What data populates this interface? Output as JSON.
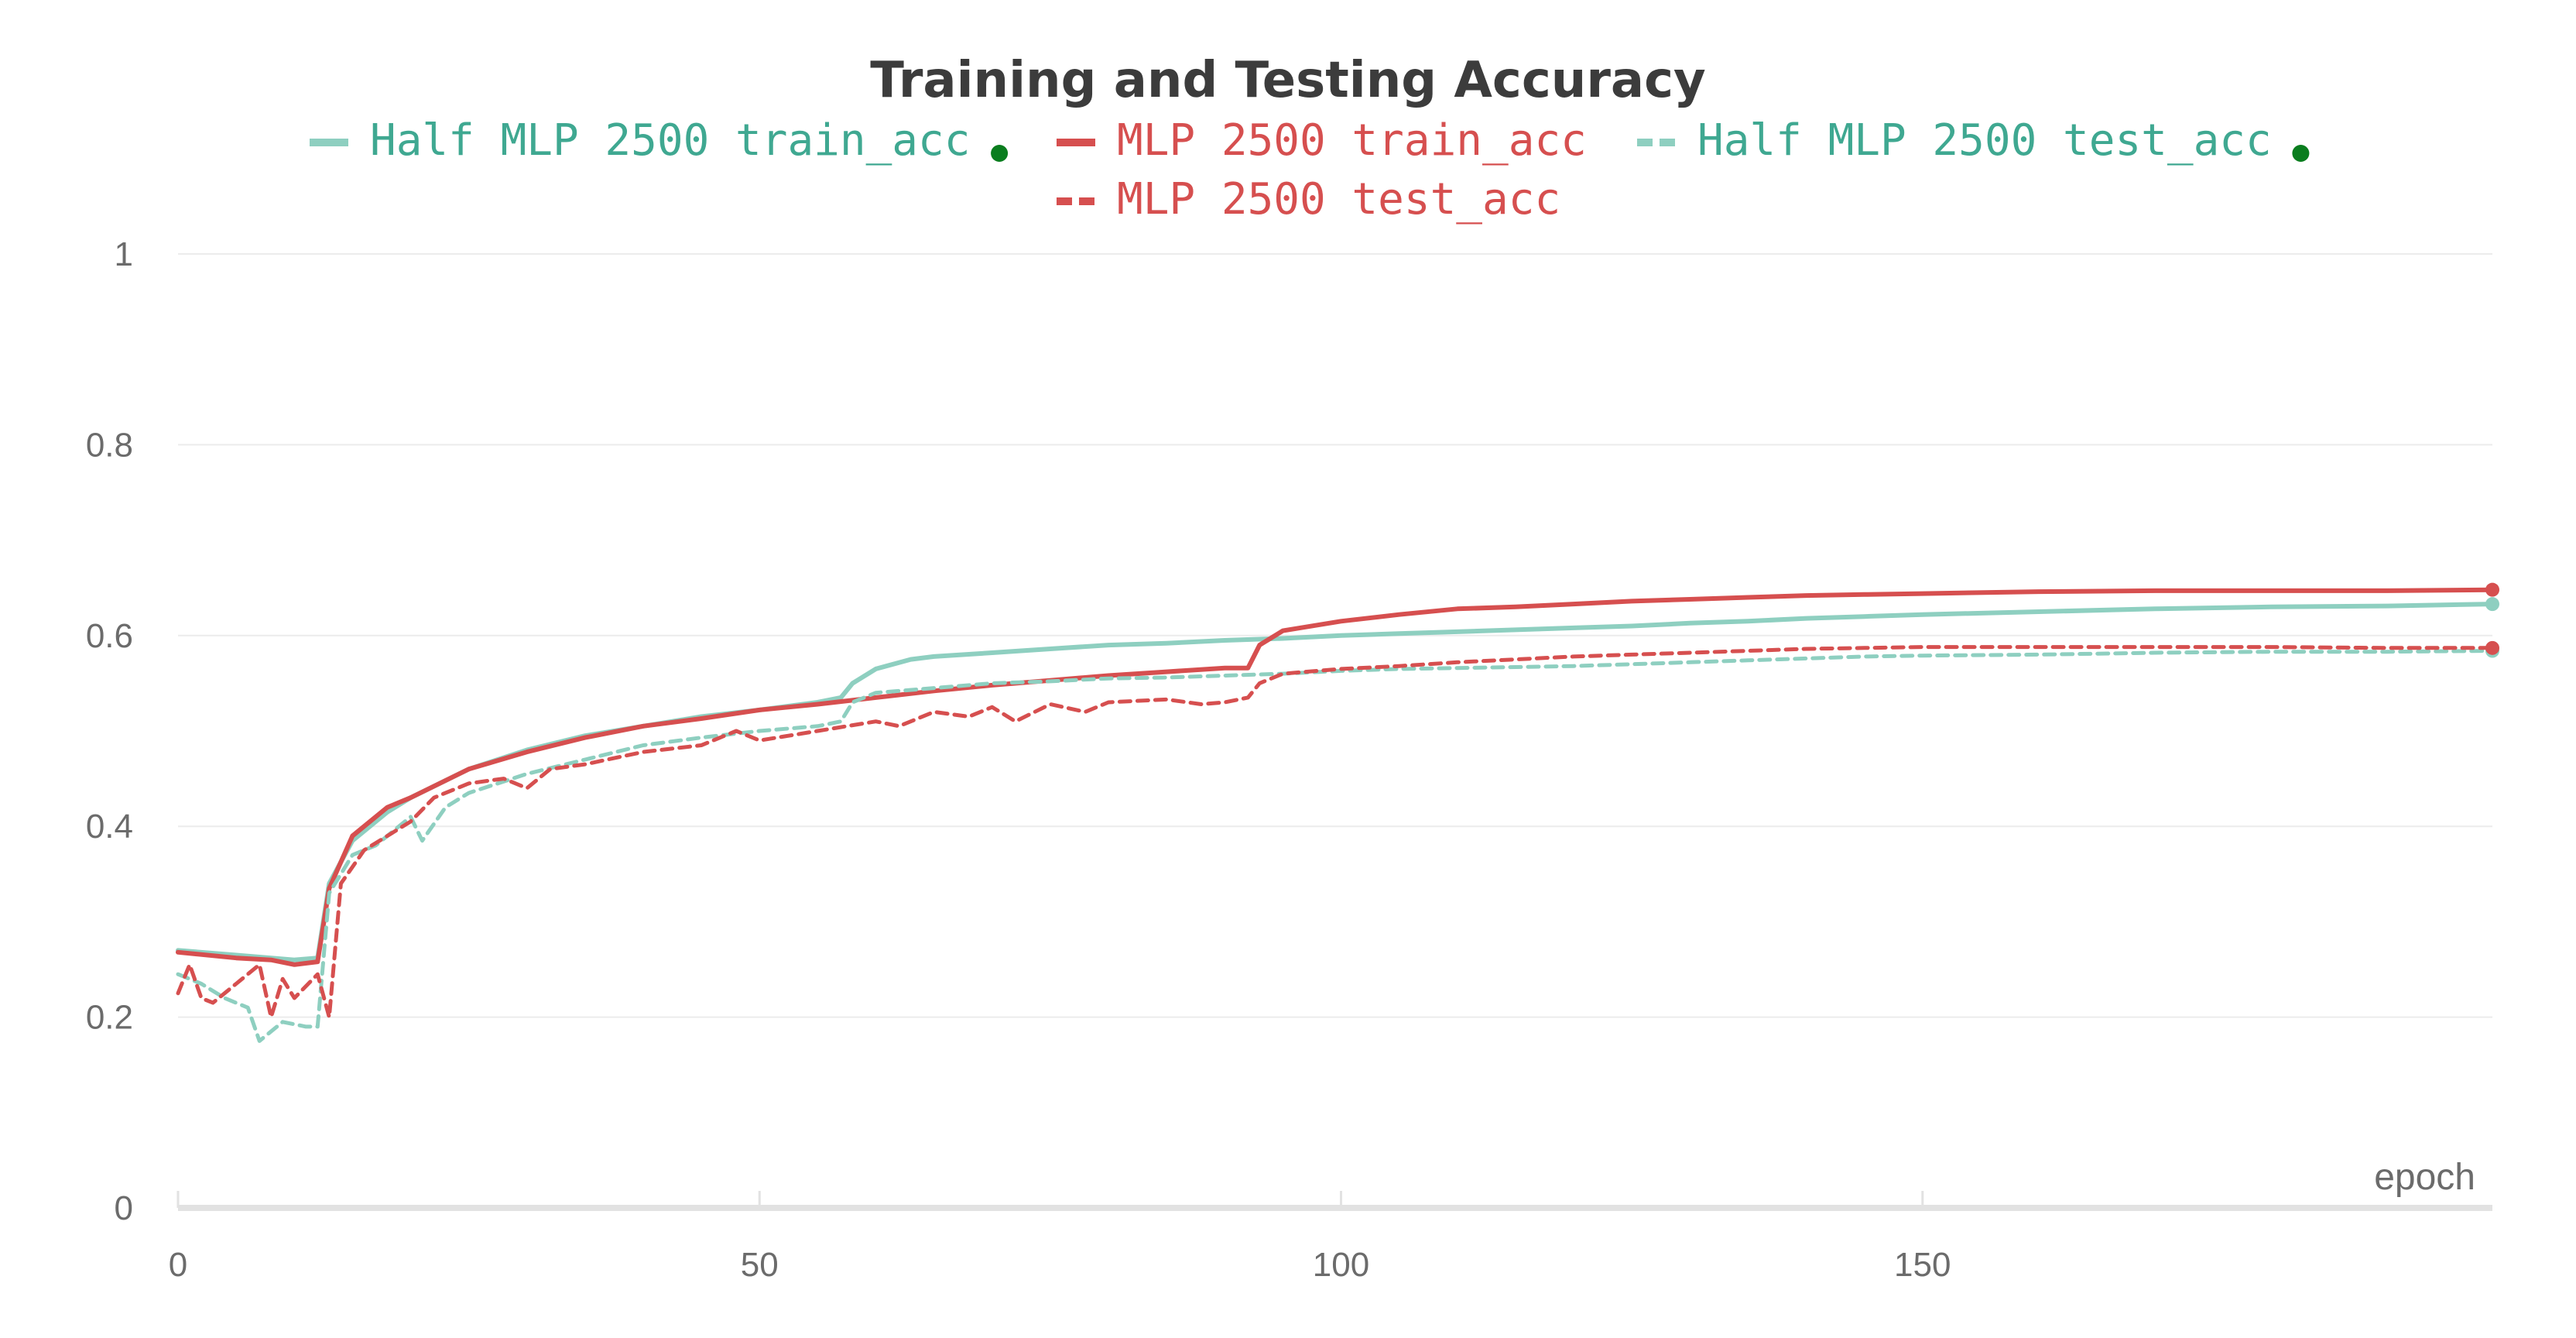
{
  "chart_data": {
    "type": "line",
    "title": "Training and Testing Accuracy",
    "xlabel": "epoch",
    "ylabel": "",
    "xlim": [
      0,
      199
    ],
    "ylim": [
      0,
      1
    ],
    "x_ticks": [
      0,
      50,
      100,
      150
    ],
    "y_ticks": [
      0,
      0.2,
      0.4,
      0.6,
      0.8,
      1
    ],
    "y_tick_labels": [
      "0",
      "0.2",
      "0.4",
      "0.6",
      "0.8",
      "1"
    ],
    "x_tick_labels": [
      "0",
      "50",
      "100",
      "150"
    ],
    "grid": true,
    "legend_position": "top-center",
    "series": [
      {
        "name": "Half MLP 2500 train_acc",
        "color": "#8ecfc0",
        "dash": "solid",
        "legend_dot": "#0a7d1e",
        "points": [
          [
            0,
            0.27
          ],
          [
            5,
            0.265
          ],
          [
            10,
            0.26
          ],
          [
            12,
            0.262
          ],
          [
            13,
            0.34
          ],
          [
            15,
            0.385
          ],
          [
            18,
            0.415
          ],
          [
            20,
            0.43
          ],
          [
            25,
            0.46
          ],
          [
            30,
            0.48
          ],
          [
            35,
            0.495
          ],
          [
            40,
            0.505
          ],
          [
            45,
            0.515
          ],
          [
            50,
            0.522
          ],
          [
            55,
            0.53
          ],
          [
            57,
            0.535
          ],
          [
            58,
            0.55
          ],
          [
            60,
            0.565
          ],
          [
            63,
            0.575
          ],
          [
            65,
            0.578
          ],
          [
            70,
            0.582
          ],
          [
            75,
            0.586
          ],
          [
            80,
            0.59
          ],
          [
            85,
            0.592
          ],
          [
            90,
            0.595
          ],
          [
            95,
            0.597
          ],
          [
            100,
            0.6
          ],
          [
            105,
            0.602
          ],
          [
            110,
            0.604
          ],
          [
            115,
            0.606
          ],
          [
            120,
            0.608
          ],
          [
            125,
            0.61
          ],
          [
            130,
            0.613
          ],
          [
            135,
            0.615
          ],
          [
            140,
            0.618
          ],
          [
            145,
            0.62
          ],
          [
            150,
            0.622
          ],
          [
            160,
            0.625
          ],
          [
            170,
            0.628
          ],
          [
            180,
            0.63
          ],
          [
            190,
            0.631
          ],
          [
            199,
            0.633
          ]
        ]
      },
      {
        "name": "MLP 2500 train_acc",
        "color": "#d64f4f",
        "dash": "solid",
        "legend_dot": "",
        "points": [
          [
            0,
            0.268
          ],
          [
            5,
            0.262
          ],
          [
            8,
            0.26
          ],
          [
            10,
            0.255
          ],
          [
            12,
            0.258
          ],
          [
            13,
            0.335
          ],
          [
            15,
            0.39
          ],
          [
            18,
            0.42
          ],
          [
            20,
            0.43
          ],
          [
            25,
            0.46
          ],
          [
            30,
            0.478
          ],
          [
            35,
            0.493
          ],
          [
            40,
            0.505
          ],
          [
            45,
            0.513
          ],
          [
            50,
            0.522
          ],
          [
            55,
            0.528
          ],
          [
            60,
            0.535
          ],
          [
            65,
            0.542
          ],
          [
            70,
            0.548
          ],
          [
            75,
            0.553
          ],
          [
            80,
            0.558
          ],
          [
            85,
            0.562
          ],
          [
            90,
            0.566
          ],
          [
            92,
            0.566
          ],
          [
            93,
            0.59
          ],
          [
            95,
            0.605
          ],
          [
            100,
            0.615
          ],
          [
            105,
            0.622
          ],
          [
            110,
            0.628
          ],
          [
            115,
            0.63
          ],
          [
            120,
            0.633
          ],
          [
            125,
            0.636
          ],
          [
            130,
            0.638
          ],
          [
            135,
            0.64
          ],
          [
            140,
            0.642
          ],
          [
            145,
            0.643
          ],
          [
            150,
            0.644
          ],
          [
            160,
            0.646
          ],
          [
            170,
            0.647
          ],
          [
            180,
            0.647
          ],
          [
            190,
            0.647
          ],
          [
            199,
            0.648
          ]
        ]
      },
      {
        "name": "Half MLP 2500 test_acc",
        "color": "#8ecfc0",
        "dash": "dashed",
        "legend_dot": "#0a7d1e",
        "points": [
          [
            0,
            0.245
          ],
          [
            2,
            0.235
          ],
          [
            4,
            0.22
          ],
          [
            6,
            0.21
          ],
          [
            7,
            0.175
          ],
          [
            9,
            0.195
          ],
          [
            11,
            0.19
          ],
          [
            12,
            0.19
          ],
          [
            13,
            0.33
          ],
          [
            15,
            0.37
          ],
          [
            17,
            0.38
          ],
          [
            20,
            0.41
          ],
          [
            21,
            0.385
          ],
          [
            23,
            0.42
          ],
          [
            25,
            0.435
          ],
          [
            30,
            0.455
          ],
          [
            35,
            0.47
          ],
          [
            40,
            0.485
          ],
          [
            45,
            0.493
          ],
          [
            50,
            0.5
          ],
          [
            55,
            0.505
          ],
          [
            57,
            0.51
          ],
          [
            58,
            0.53
          ],
          [
            60,
            0.54
          ],
          [
            65,
            0.545
          ],
          [
            70,
            0.55
          ],
          [
            75,
            0.552
          ],
          [
            80,
            0.555
          ],
          [
            85,
            0.556
          ],
          [
            90,
            0.558
          ],
          [
            95,
            0.56
          ],
          [
            100,
            0.563
          ],
          [
            105,
            0.565
          ],
          [
            110,
            0.566
          ],
          [
            115,
            0.567
          ],
          [
            120,
            0.568
          ],
          [
            125,
            0.57
          ],
          [
            130,
            0.572
          ],
          [
            135,
            0.574
          ],
          [
            140,
            0.576
          ],
          [
            145,
            0.578
          ],
          [
            150,
            0.579
          ],
          [
            160,
            0.58
          ],
          [
            170,
            0.582
          ],
          [
            180,
            0.583
          ],
          [
            190,
            0.583
          ],
          [
            199,
            0.584
          ]
        ]
      },
      {
        "name": "MLP 2500 test_acc",
        "color": "#d64f4f",
        "dash": "dashed",
        "legend_dot": "",
        "points": [
          [
            0,
            0.225
          ],
          [
            1,
            0.255
          ],
          [
            2,
            0.22
          ],
          [
            3,
            0.215
          ],
          [
            5,
            0.235
          ],
          [
            7,
            0.255
          ],
          [
            8,
            0.2
          ],
          [
            9,
            0.24
          ],
          [
            10,
            0.22
          ],
          [
            12,
            0.245
          ],
          [
            13,
            0.2
          ],
          [
            14,
            0.34
          ],
          [
            16,
            0.375
          ],
          [
            18,
            0.39
          ],
          [
            20,
            0.405
          ],
          [
            22,
            0.43
          ],
          [
            25,
            0.445
          ],
          [
            28,
            0.45
          ],
          [
            30,
            0.44
          ],
          [
            32,
            0.46
          ],
          [
            35,
            0.465
          ],
          [
            40,
            0.478
          ],
          [
            45,
            0.485
          ],
          [
            48,
            0.5
          ],
          [
            50,
            0.49
          ],
          [
            55,
            0.5
          ],
          [
            60,
            0.51
          ],
          [
            62,
            0.505
          ],
          [
            65,
            0.52
          ],
          [
            68,
            0.515
          ],
          [
            70,
            0.525
          ],
          [
            72,
            0.51
          ],
          [
            75,
            0.528
          ],
          [
            78,
            0.52
          ],
          [
            80,
            0.53
          ],
          [
            85,
            0.533
          ],
          [
            88,
            0.528
          ],
          [
            90,
            0.53
          ],
          [
            92,
            0.535
          ],
          [
            93,
            0.55
          ],
          [
            95,
            0.56
          ],
          [
            100,
            0.565
          ],
          [
            105,
            0.568
          ],
          [
            110,
            0.572
          ],
          [
            115,
            0.575
          ],
          [
            120,
            0.578
          ],
          [
            125,
            0.58
          ],
          [
            130,
            0.582
          ],
          [
            135,
            0.584
          ],
          [
            140,
            0.586
          ],
          [
            145,
            0.587
          ],
          [
            150,
            0.588
          ],
          [
            160,
            0.588
          ],
          [
            170,
            0.588
          ],
          [
            180,
            0.588
          ],
          [
            190,
            0.587
          ],
          [
            199,
            0.587
          ]
        ]
      }
    ]
  }
}
